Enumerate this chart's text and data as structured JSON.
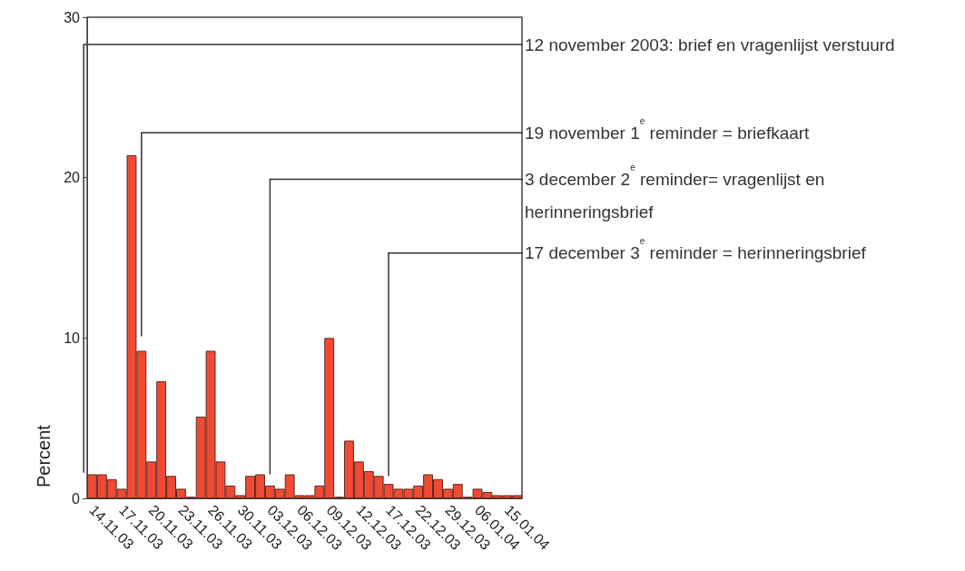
{
  "chart_data": {
    "type": "bar",
    "ylabel": "Percent",
    "categories": [
      "14.11.03",
      null,
      null,
      "17.11.03",
      null,
      null,
      "20.11.03",
      null,
      null,
      "23.11.03",
      null,
      null,
      "26.11.03",
      null,
      null,
      "30.11.03",
      null,
      null,
      "03.12.03",
      null,
      null,
      "06.12.03",
      null,
      null,
      "09.12.03",
      null,
      null,
      "12.12.03",
      null,
      null,
      "17.12.03",
      null,
      null,
      "22.12.03",
      null,
      null,
      "29.12.03",
      null,
      null,
      "06.01.04",
      null,
      null,
      "15.01.04",
      null
    ],
    "values": [
      1.5,
      1.5,
      1.2,
      0.6,
      21.4,
      9.2,
      2.3,
      7.3,
      1.4,
      0.6,
      0.1,
      5.1,
      9.2,
      2.3,
      0.8,
      0.2,
      1.4,
      1.5,
      0.8,
      0.6,
      1.5,
      0.2,
      0.2,
      0.8,
      10.0,
      0.1,
      3.6,
      2.3,
      1.7,
      1.4,
      0.9,
      0.6,
      0.6,
      0.8,
      1.5,
      1.2,
      0.6,
      0.9,
      0.1,
      0.6,
      0.4,
      0.2,
      0.2,
      0.2
    ],
    "color": "#f04a35",
    "ylim": [
      0,
      30
    ],
    "yticks": [
      0,
      10,
      20,
      30
    ],
    "grid": false,
    "annotations": [
      "12 november 2003: brief en vragenlijst verstuurd",
      "19 november 1$^{e}$ reminder = briefkaart",
      "3 december 2$^{e}$ reminder= vragenlijst en herinneringsbrief",
      "17 december 3$^{e}$ reminder = herinneringsbrief"
    ]
  }
}
